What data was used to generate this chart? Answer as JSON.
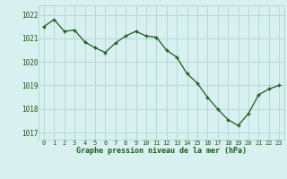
{
  "hours": [
    0,
    1,
    2,
    3,
    4,
    5,
    6,
    7,
    8,
    9,
    10,
    11,
    12,
    13,
    14,
    15,
    16,
    17,
    18,
    19,
    20,
    21,
    22,
    23
  ],
  "pressure": [
    1021.5,
    1021.8,
    1021.3,
    1021.35,
    1020.85,
    1020.6,
    1020.4,
    1020.8,
    1021.1,
    1021.3,
    1021.1,
    1021.05,
    1020.5,
    1020.2,
    1019.5,
    1019.1,
    1018.5,
    1018.0,
    1017.55,
    1017.3,
    1017.8,
    1018.6,
    1018.85,
    1019.0
  ],
  "line_color": "#1a5c1a",
  "marker_color": "#1a5c1a",
  "bg_color": "#d8f0f0",
  "grid_color": "#b8d8d8",
  "xlabel": "Graphe pression niveau de la mer (hPa)",
  "xlabel_color": "#1a5c1a",
  "tick_color": "#1a5c1a",
  "ylabel_ticks": [
    1017,
    1018,
    1019,
    1020,
    1021,
    1022
  ],
  "ylim": [
    1016.7,
    1022.4
  ],
  "xlim": [
    -0.5,
    23.5
  ],
  "xtick_labels": [
    "0",
    "1",
    "2",
    "3",
    "4",
    "5",
    "6",
    "7",
    "8",
    "9",
    "10",
    "11",
    "12",
    "13",
    "14",
    "15",
    "16",
    "17",
    "18",
    "19",
    "20",
    "21",
    "22",
    "23"
  ]
}
